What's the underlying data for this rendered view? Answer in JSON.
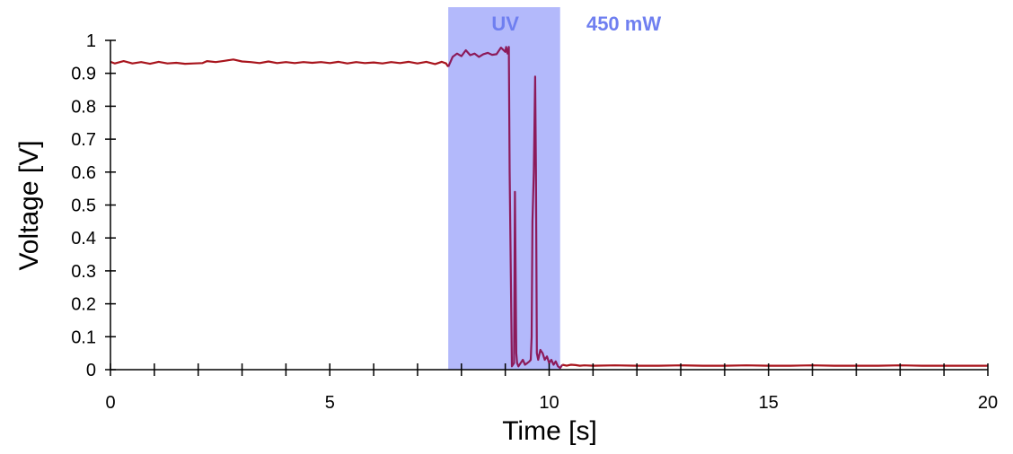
{
  "chart_data": {
    "type": "line",
    "xlabel": "Time [s]",
    "ylabel": "Voltage [V]",
    "xlim": [
      0,
      20
    ],
    "ylim": [
      0,
      1
    ],
    "x_ticks": [
      0,
      5,
      10,
      15,
      20
    ],
    "x_minor_step": 1,
    "y_ticks": [
      0,
      0.1,
      0.2,
      0.3,
      0.4,
      0.5,
      0.6,
      0.7,
      0.8,
      0.9,
      1
    ],
    "grid": false,
    "legend": "none",
    "highlight": {
      "label": "UV",
      "x_start": 7.7,
      "x_end": 10.25,
      "color": "#b3b9fb"
    },
    "annotations": [
      {
        "text": "UV",
        "x": 9.0,
        "y": 1.03,
        "color": "#6f7ff0"
      },
      {
        "text": "450 mW",
        "x": 11.7,
        "y": 1.03,
        "color": "#6f7ff0"
      }
    ],
    "series": [
      {
        "color": "#a8141c",
        "highlight_color": "#8c1a5a",
        "x": [
          0,
          0.1,
          0.3,
          0.5,
          0.7,
          0.9,
          1.1,
          1.3,
          1.5,
          1.7,
          1.9,
          2.1,
          2.2,
          2.4,
          2.6,
          2.8,
          3.0,
          3.2,
          3.4,
          3.6,
          3.8,
          4.0,
          4.2,
          4.4,
          4.6,
          4.8,
          5.0,
          5.2,
          5.4,
          5.6,
          5.8,
          6.0,
          6.2,
          6.4,
          6.6,
          6.8,
          7.0,
          7.2,
          7.4,
          7.55,
          7.65,
          7.7,
          7.75,
          7.8,
          7.9,
          8.0,
          8.1,
          8.2,
          8.3,
          8.4,
          8.5,
          8.6,
          8.7,
          8.8,
          8.9,
          9.0,
          9.02,
          9.05,
          9.08,
          9.1,
          9.15,
          9.2,
          9.22,
          9.25,
          9.27,
          9.3,
          9.35,
          9.4,
          9.45,
          9.5,
          9.55,
          9.58,
          9.6,
          9.62,
          9.65,
          9.68,
          9.7,
          9.72,
          9.75,
          9.8,
          9.85,
          9.9,
          9.95,
          10.0,
          10.05,
          10.1,
          10.15,
          10.2,
          10.25,
          10.3,
          10.4,
          10.5,
          10.6,
          10.7,
          10.8,
          11.0,
          11.5,
          12.0,
          12.5,
          13.0,
          13.5,
          14.0,
          14.5,
          15.0,
          15.5,
          16.0,
          16.5,
          17.0,
          17.5,
          18.0,
          18.5,
          19.0,
          19.5,
          20.0
        ],
        "y": [
          0.935,
          0.93,
          0.937,
          0.93,
          0.934,
          0.929,
          0.935,
          0.93,
          0.932,
          0.929,
          0.93,
          0.931,
          0.937,
          0.934,
          0.938,
          0.942,
          0.936,
          0.934,
          0.931,
          0.936,
          0.931,
          0.934,
          0.931,
          0.934,
          0.932,
          0.934,
          0.931,
          0.935,
          0.93,
          0.934,
          0.931,
          0.933,
          0.93,
          0.934,
          0.931,
          0.935,
          0.93,
          0.935,
          0.928,
          0.935,
          0.93,
          0.92,
          0.935,
          0.95,
          0.96,
          0.952,
          0.97,
          0.955,
          0.96,
          0.95,
          0.958,
          0.962,
          0.956,
          0.958,
          0.978,
          0.965,
          0.98,
          0.96,
          0.98,
          0.6,
          0.01,
          0.02,
          0.54,
          0.05,
          0.02,
          0.01,
          0.02,
          0.03,
          0.015,
          0.02,
          0.025,
          0.03,
          0.1,
          0.45,
          0.6,
          0.89,
          0.6,
          0.05,
          0.03,
          0.06,
          0.05,
          0.03,
          0.04,
          0.02,
          0.03,
          0.015,
          0.025,
          0.01,
          0.005,
          0.015,
          0.012,
          0.015,
          0.014,
          0.012,
          0.013,
          0.012,
          0.013,
          0.012,
          0.012,
          0.013,
          0.012,
          0.012,
          0.013,
          0.012,
          0.012,
          0.013,
          0.012,
          0.012,
          0.012,
          0.013,
          0.012,
          0.012,
          0.012,
          0.012
        ]
      }
    ]
  }
}
